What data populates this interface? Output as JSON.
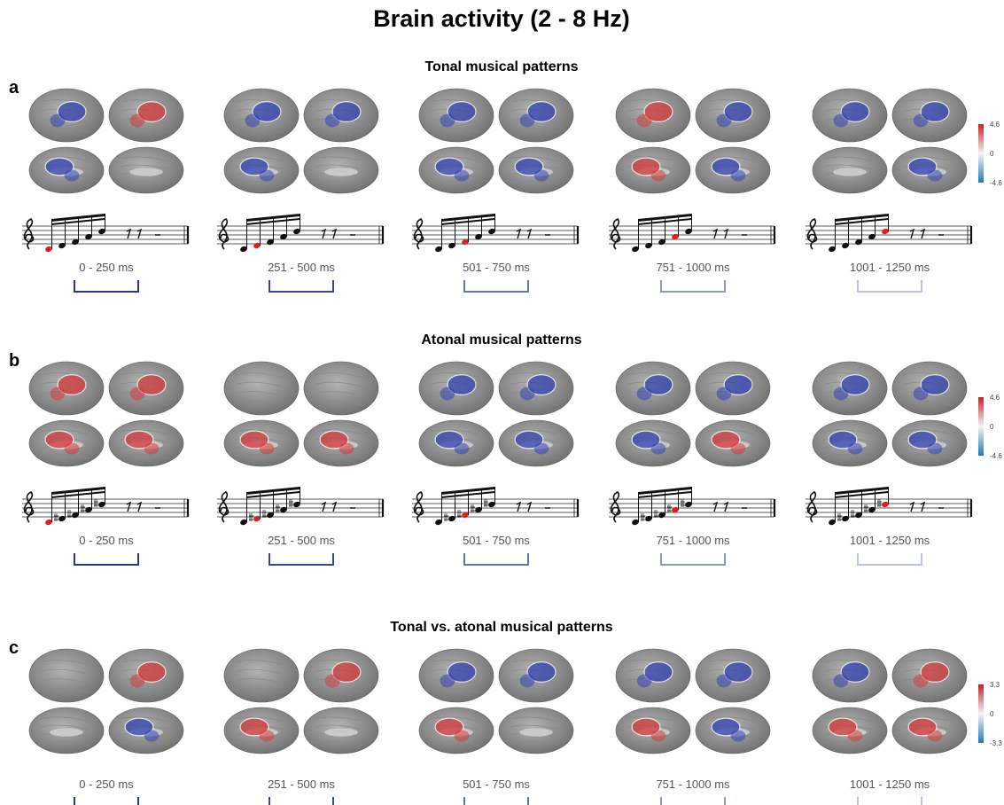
{
  "title": "Brain activity (2 - 8 Hz)",
  "panels": [
    {
      "letter": "a",
      "title": "Tonal musical patterns",
      "windows": [
        "0 - 250 ms",
        "251 - 500 ms",
        "501 - 750 ms",
        "751 - 1000 ms",
        "1001 - 1250 ms"
      ],
      "colorbar": [
        "4.6",
        "0",
        "-4.6"
      ]
    },
    {
      "letter": "b",
      "title": "Atonal musical patterns",
      "windows": [
        "0 - 250 ms",
        "251 - 500 ms",
        "501 - 750 ms",
        "751 - 1000 ms",
        "1001 - 1250 ms"
      ],
      "colorbar": [
        "4.6",
        "0",
        "-4.6"
      ]
    },
    {
      "letter": "c",
      "title": "Tonal vs. atonal musical patterns",
      "windows": [
        "0 - 250 ms",
        "251 - 500 ms",
        "501 - 750 ms",
        "751 - 1000 ms",
        "1001 - 1250 ms"
      ],
      "colorbar": [
        "3.3",
        "0",
        "-3.3"
      ]
    }
  ]
}
